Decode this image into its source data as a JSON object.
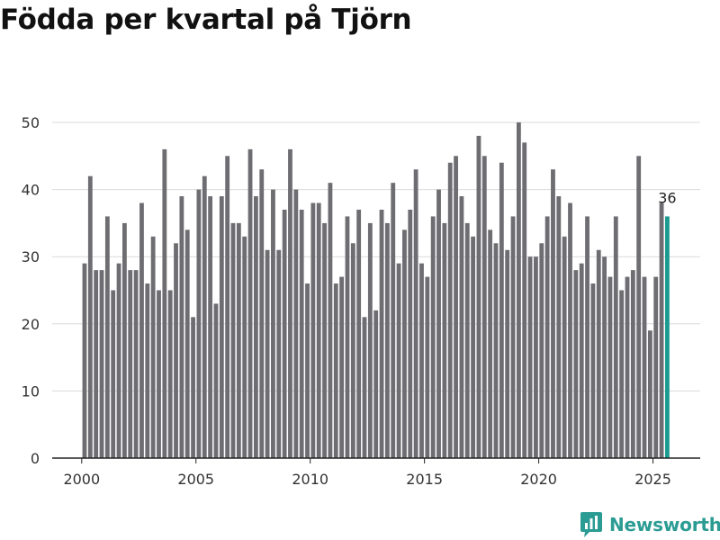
{
  "title": "Födda per kvartal på Tjörn",
  "brand": {
    "name": "Newsworthy",
    "icon": "newsworthy-chart-bubble-icon"
  },
  "colors": {
    "bar": "#6e6d72",
    "highlight": "#1b9a90",
    "grid": "#d9d9d9",
    "axis": "#222222",
    "text": "#333333",
    "brand": "#2b9c93"
  },
  "chart_data": {
    "type": "bar",
    "title": "Födda per kvartal på Tjörn",
    "xlabel": "",
    "ylabel": "",
    "ylim": [
      0,
      50
    ],
    "yticks": [
      0,
      10,
      20,
      30,
      40,
      50
    ],
    "xticks": [
      {
        "label": "2000",
        "value": 2000
      },
      {
        "label": "2005",
        "value": 2005
      },
      {
        "label": "2010",
        "value": 2010
      },
      {
        "label": "2015",
        "value": 2015
      },
      {
        "label": "2020",
        "value": 2020
      },
      {
        "label": "2025",
        "value": 2025
      }
    ],
    "grid": true,
    "start": {
      "year": 2000,
      "quarter": 1
    },
    "values": [
      29,
      42,
      28,
      28,
      36,
      25,
      29,
      35,
      28,
      28,
      38,
      26,
      33,
      25,
      46,
      25,
      32,
      39,
      34,
      21,
      40,
      42,
      39,
      23,
      39,
      45,
      35,
      35,
      33,
      46,
      39,
      43,
      31,
      40,
      31,
      37,
      46,
      40,
      37,
      26,
      38,
      38,
      35,
      41,
      26,
      27,
      36,
      32,
      37,
      21,
      35,
      22,
      37,
      35,
      41,
      29,
      34,
      37,
      43,
      29,
      27,
      36,
      40,
      35,
      44,
      45,
      39,
      35,
      33,
      48,
      45,
      34,
      32,
      44,
      31,
      36,
      50,
      47,
      30,
      30,
      32,
      36,
      43,
      39,
      33,
      38,
      28,
      29,
      36,
      26,
      31,
      30,
      27,
      36,
      25,
      27,
      28,
      45,
      27,
      19,
      27,
      38,
      36
    ],
    "highlight_last": true,
    "data_labels": [
      {
        "index": 102,
        "text": "36"
      }
    ]
  }
}
